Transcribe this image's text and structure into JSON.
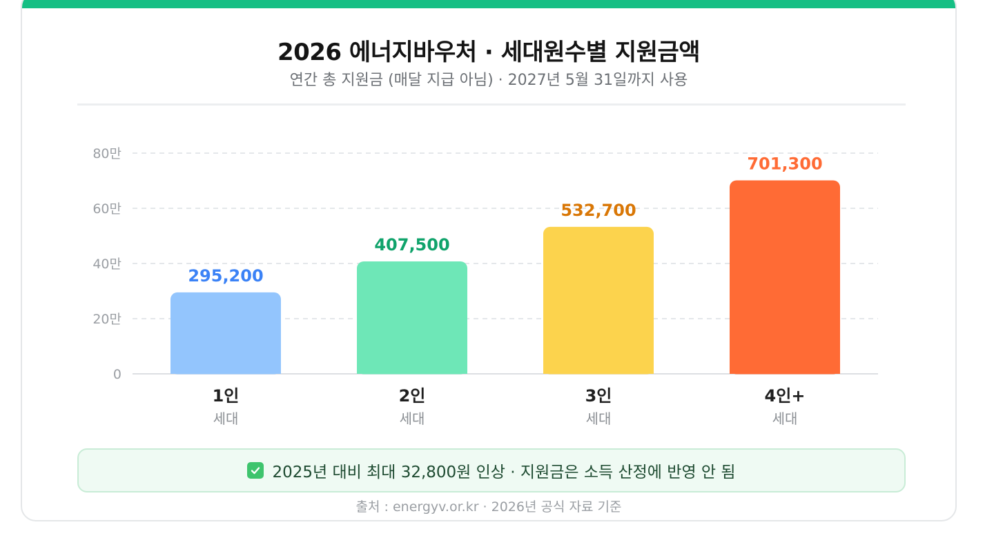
{
  "header": {
    "title": "2026 에너지바우처 · 세대원수별 지원금액",
    "subtitle": "연간 총 지원금 (매달 지급 아님) · 2027년 5월 31일까지 사용"
  },
  "colors": {
    "accent_bar": "#16bf84",
    "grid": "#dcdfe3",
    "axis": "#dcdfe3"
  },
  "chart_data": {
    "type": "bar",
    "title": "2026 에너지바우처 · 세대원수별 지원금액",
    "subtitle": "연간 총 지원금 (매달 지급 아님) · 2027년 5월 31일까지 사용",
    "categories": [
      "1인",
      "2인",
      "3인",
      "4인+"
    ],
    "category_sublabels": [
      "세대",
      "세대",
      "세대",
      "세대"
    ],
    "values": [
      295200,
      407500,
      532700,
      701300
    ],
    "value_labels": [
      "295,200",
      "407,500",
      "532,700",
      "701,300"
    ],
    "bar_colors": [
      "#93c5fd",
      "#6ee7b7",
      "#fcd34d",
      "#ff6b35"
    ],
    "label_colors": [
      "#3b82f6",
      "#10a36b",
      "#d97706",
      "#ff6b35"
    ],
    "yticks": [
      0,
      200000,
      400000,
      600000,
      800000
    ],
    "ytick_labels": [
      "0",
      "20만",
      "40만",
      "60만",
      "80만"
    ],
    "ylim": [
      0,
      800000
    ],
    "grid": true,
    "xlabel": "",
    "ylabel": ""
  },
  "note": {
    "icon": "check-icon",
    "text": "2025년 대비 최대 32,800원 인상 · 지원금은 소득 산정에 반영 안 됨"
  },
  "footer": {
    "source": "출처 : energyv.or.kr · 2026년 공식 자료 기준"
  }
}
